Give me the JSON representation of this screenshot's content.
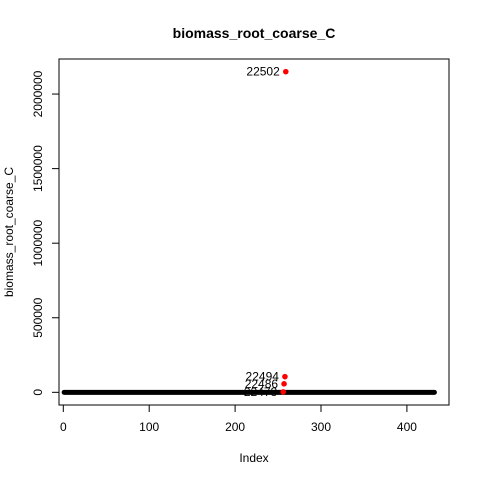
{
  "chart_data": {
    "type": "scatter",
    "title": "biomass_root_coarse_C",
    "xlabel": "Index",
    "ylabel": "biomass_root_coarse_C",
    "xlim": [
      -5,
      449
    ],
    "ylim": [
      -85000,
      2235000
    ],
    "x_ticks": [
      0,
      100,
      200,
      300,
      400
    ],
    "x_tick_labels": [
      "0",
      "100",
      "200",
      "300",
      "400"
    ],
    "y_ticks": [
      0,
      500000,
      1000000,
      1500000,
      2000000
    ],
    "y_tick_labels": [
      "0",
      "500000",
      "1000000",
      "1500000",
      "2000000"
    ],
    "baseline": {
      "x_range": [
        1,
        432
      ],
      "value": 0
    },
    "highlight_color": "#ff0000",
    "point_color": "#000000",
    "outliers": [
      {
        "label": "22502",
        "x": 259,
        "y": 2150000
      },
      {
        "label": "22494",
        "x": 258,
        "y": 105000
      },
      {
        "label": "22486",
        "x": 257,
        "y": 57000
      },
      {
        "label": "22478",
        "x": 256,
        "y": 3000
      }
    ],
    "grid": false,
    "legend": "none"
  }
}
